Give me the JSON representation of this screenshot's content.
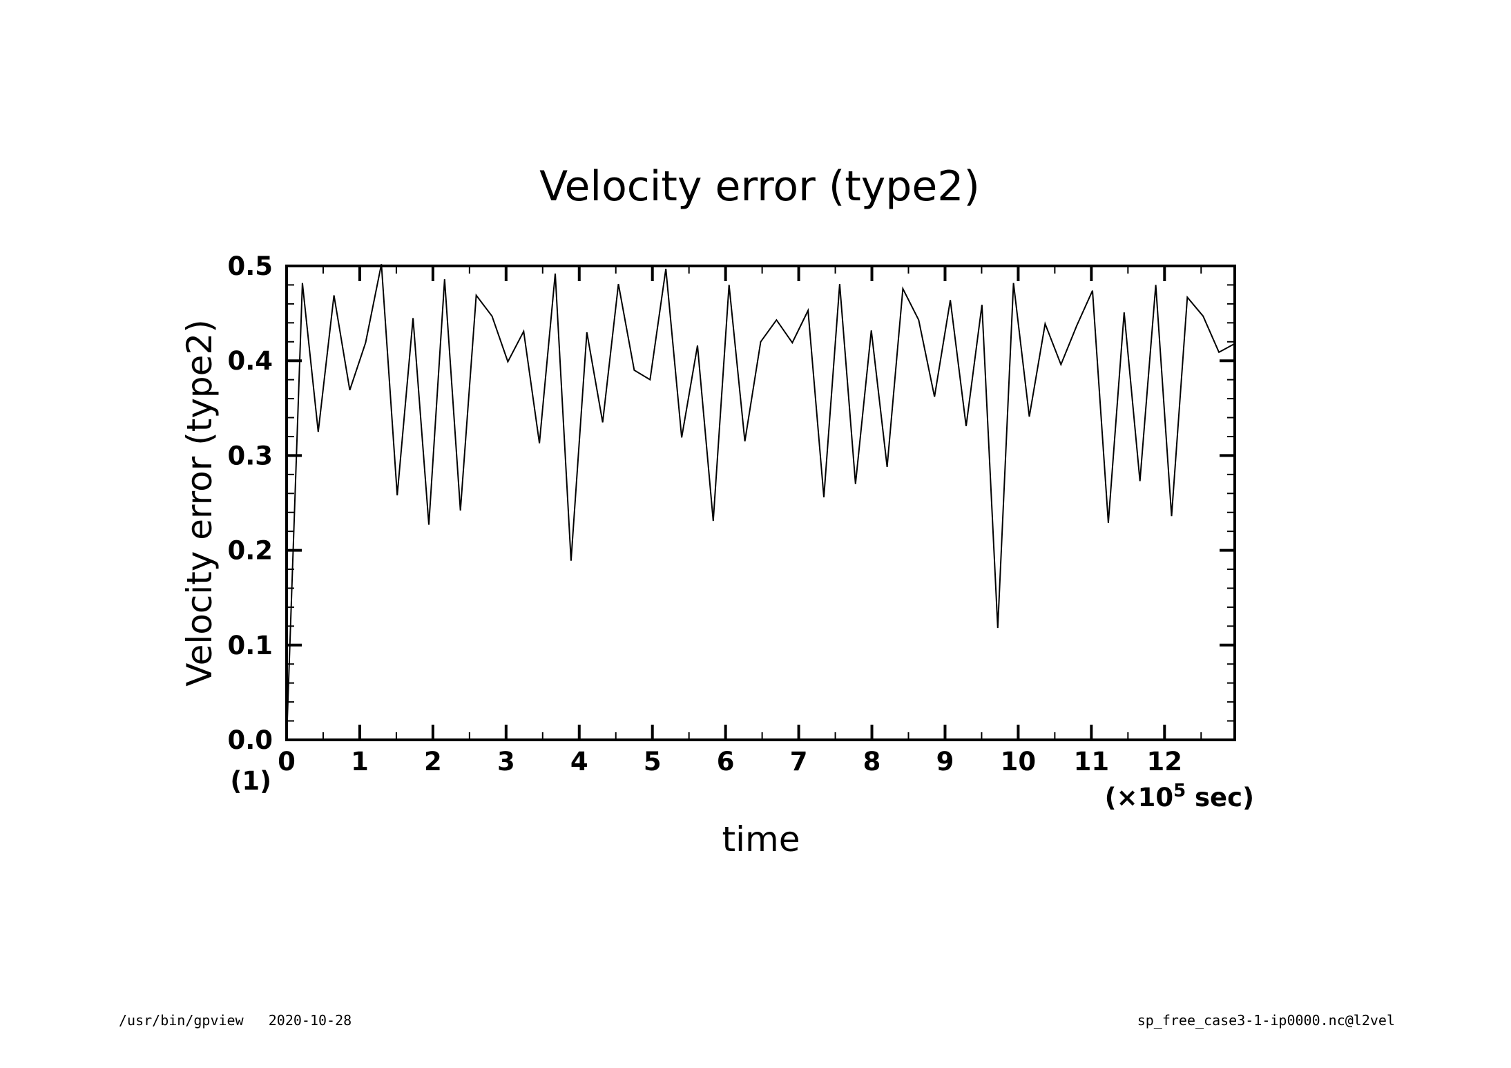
{
  "chart_data": {
    "type": "line",
    "title": "Velocity error (type2)",
    "xlabel": "time",
    "ylabel": "Velocity error (type2)",
    "x_unit": "(×10⁵ sec)",
    "x_unit_prefix": "(×10",
    "x_unit_exp": "5",
    "x_unit_suffix": " sec)",
    "panel_label": "(1)",
    "xlim": [
      0,
      12.96
    ],
    "ylim": [
      0,
      0.5
    ],
    "x_ticks": [
      "0",
      "1",
      "2",
      "3",
      "4",
      "5",
      "6",
      "7",
      "8",
      "9",
      "10",
      "11",
      "12"
    ],
    "y_ticks": [
      "0.0",
      "0.1",
      "0.2",
      "0.3",
      "0.4",
      "0.5"
    ],
    "x_tick_values": [
      0,
      1,
      2,
      3,
      4,
      5,
      6,
      7,
      8,
      9,
      10,
      11,
      12
    ],
    "y_tick_values": [
      0,
      0.1,
      0.2,
      0.3,
      0.4,
      0.5
    ],
    "grid": false,
    "legend": "none",
    "line_color": "#000000",
    "series": [
      {
        "x": [
          0,
          0.216,
          0.432,
          0.648,
          0.864,
          1.08,
          1.296,
          1.512,
          1.728,
          1.944,
          2.16,
          2.376,
          2.592,
          2.808,
          3.024,
          3.24,
          3.456,
          3.672,
          3.888,
          4.104,
          4.32,
          4.536,
          4.752,
          4.968,
          5.184,
          5.4,
          5.616,
          5.832,
          6.048,
          6.264,
          6.48,
          6.696,
          6.912,
          7.128,
          7.344,
          7.56,
          7.776,
          7.992,
          8.208,
          8.424,
          8.64,
          8.856,
          9.072,
          9.288,
          9.504,
          9.72,
          9.936,
          10.152,
          10.368,
          10.584,
          10.8,
          11.016,
          11.232,
          11.448,
          11.664,
          11.88,
          12.096,
          12.312,
          12.528,
          12.744,
          12.96
        ],
        "y": [
          0.0,
          0.482,
          0.325,
          0.469,
          0.369,
          0.419,
          0.502,
          0.258,
          0.445,
          0.227,
          0.486,
          0.242,
          0.469,
          0.447,
          0.399,
          0.431,
          0.313,
          0.492,
          0.189,
          0.43,
          0.335,
          0.481,
          0.39,
          0.38,
          0.497,
          0.319,
          0.416,
          0.231,
          0.48,
          0.315,
          0.42,
          0.443,
          0.419,
          0.453,
          0.256,
          0.481,
          0.27,
          0.432,
          0.288,
          0.476,
          0.443,
          0.362,
          0.464,
          0.331,
          0.459,
          0.118,
          0.482,
          0.341,
          0.439,
          0.396,
          0.437,
          0.474,
          0.229,
          0.451,
          0.273,
          0.48,
          0.236,
          0.467,
          0.447,
          0.409,
          0.418
        ]
      }
    ]
  },
  "footer": {
    "left": "/usr/bin/gpview   2020-10-28",
    "right": "sp_free_case3-1-ip0000.nc@l2vel"
  }
}
